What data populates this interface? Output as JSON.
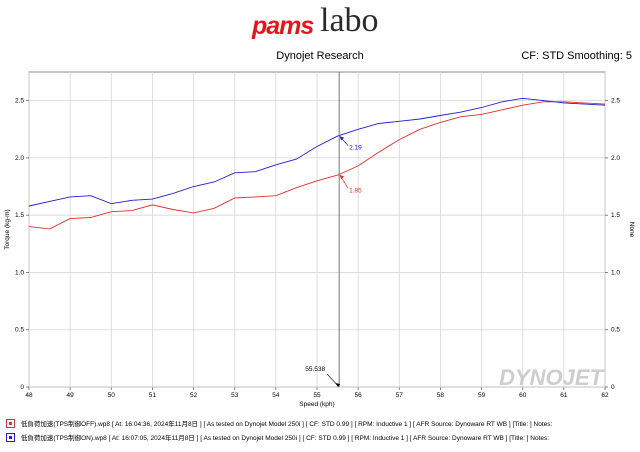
{
  "logo": {
    "brand_part1": "pams",
    "brand_part2": "labo"
  },
  "header": {
    "title": "Dynojet Research",
    "settings": "CF: STD Smoothing: 5"
  },
  "watermark": "DYNOJET",
  "legend": [
    {
      "color": "#e03030",
      "text": "低負荷加速(TPS制御OFF).wp8 [ At: 16:04:36, 2024年11月8日 ] [ As tested on Dynojet Model 250i ] [ CF: STD 0.99 ] [ RPM: Inductive 1 ] [ AFR Source: Dynoware RT WB ] [Title: ]  Notes:"
    },
    {
      "color": "#2020d0",
      "text": "低負荷加速(TPS制御ON).wp8 [ At: 16:07:05, 2024年11月8日 ] [ As tested on Dynojet Model 250i ] [ CF: STD 0.99 ] [ RPM: Inductive 1 ] [ AFR Source: Dynoware RT WB ] [Title: ]  Notes:"
    }
  ],
  "chart_data": {
    "type": "line",
    "xlabel": "Speed (kph)",
    "ylabel": "Torque (kg-m)",
    "y2label": "None",
    "xlim": [
      48,
      62
    ],
    "ylim": [
      0,
      2.75
    ],
    "xticks": [
      "48",
      "49",
      "50",
      "51",
      "52",
      "53",
      "54",
      "55",
      "56",
      "57",
      "58",
      "59",
      "60",
      "61",
      "62"
    ],
    "yticks": [
      "0",
      "0.5",
      "1.0",
      "1.5",
      "2.0",
      "2.5"
    ],
    "grid": true,
    "cursor": {
      "x": 55.538,
      "label": "55.538"
    },
    "cursor_values": [
      {
        "series": 1,
        "label": "2.19",
        "color": "#2020d0"
      },
      {
        "series": 0,
        "label": "1.85",
        "color": "#e03030"
      }
    ],
    "series": [
      {
        "color": "#e03030",
        "x": [
          48,
          48.5,
          49,
          49.5,
          50,
          50.5,
          51,
          51.5,
          52,
          52.5,
          53,
          53.5,
          54,
          54.5,
          55,
          55.5,
          56,
          56.5,
          57,
          57.5,
          58,
          58.5,
          59,
          59.5,
          60,
          60.5,
          61,
          61.5,
          62
        ],
        "y": [
          1.4,
          1.38,
          1.47,
          1.48,
          1.53,
          1.54,
          1.59,
          1.55,
          1.52,
          1.56,
          1.65,
          1.66,
          1.67,
          1.74,
          1.8,
          1.85,
          1.93,
          2.05,
          2.16,
          2.25,
          2.31,
          2.36,
          2.38,
          2.42,
          2.46,
          2.49,
          2.49,
          2.48,
          2.47
        ]
      },
      {
        "color": "#2020d0",
        "x": [
          48,
          48.5,
          49,
          49.5,
          50,
          50.5,
          51,
          51.5,
          52,
          52.5,
          53,
          53.5,
          54,
          54.5,
          55,
          55.5,
          56,
          56.5,
          57,
          57.5,
          58,
          58.5,
          59,
          59.5,
          60,
          60.5,
          61,
          61.5,
          62
        ],
        "y": [
          1.58,
          1.62,
          1.66,
          1.67,
          1.6,
          1.63,
          1.64,
          1.69,
          1.75,
          1.79,
          1.87,
          1.88,
          1.94,
          1.99,
          2.1,
          2.19,
          2.25,
          2.3,
          2.32,
          2.34,
          2.37,
          2.4,
          2.44,
          2.49,
          2.52,
          2.5,
          2.48,
          2.47,
          2.46
        ]
      }
    ]
  }
}
